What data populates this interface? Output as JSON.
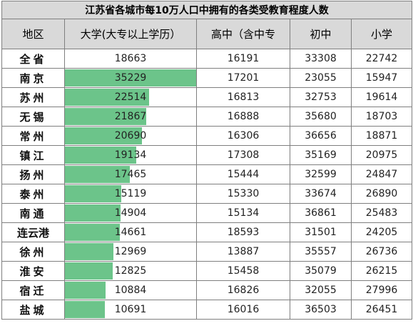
{
  "title": "江苏省各城市每10万人口中拥有的各类受教育程度人数",
  "columns": [
    "地区",
    "大学(大专以上学历）",
    "高中（含中专",
    "初中",
    "小学"
  ],
  "rows": [
    {
      "region": "全省",
      "university": 18663,
      "high_school": 16191,
      "middle_school": 33308,
      "primary_school": 22742
    },
    {
      "region": "南京",
      "university": 35229,
      "high_school": 17201,
      "middle_school": 23055,
      "primary_school": 15947
    },
    {
      "region": "苏州",
      "university": 22514,
      "high_school": 16813,
      "middle_school": 32753,
      "primary_school": 19614
    },
    {
      "region": "无锡",
      "university": 21867,
      "high_school": 16888,
      "middle_school": 35680,
      "primary_school": 18703
    },
    {
      "region": "常州",
      "university": 20690,
      "high_school": 16306,
      "middle_school": 36656,
      "primary_school": 18871
    },
    {
      "region": "镇江",
      "university": 19134,
      "high_school": 17308,
      "middle_school": 35169,
      "primary_school": 20975
    },
    {
      "region": "扬州",
      "university": 17465,
      "high_school": 15444,
      "middle_school": 32599,
      "primary_school": 24847
    },
    {
      "region": "泰州",
      "university": 15119,
      "high_school": 15330,
      "middle_school": 33674,
      "primary_school": 26890
    },
    {
      "region": "南通",
      "university": 14904,
      "high_school": 15134,
      "middle_school": 36861,
      "primary_school": 25483
    },
    {
      "region": "连云港",
      "university": 14661,
      "high_school": 18593,
      "middle_school": 31501,
      "primary_school": 24205
    },
    {
      "region": "徐州",
      "university": 12969,
      "high_school": 13887,
      "middle_school": 35557,
      "primary_school": 26736
    },
    {
      "region": "淮安",
      "university": 12825,
      "high_school": 15458,
      "middle_school": 35079,
      "primary_school": 26215
    },
    {
      "region": "宿迁",
      "university": 10884,
      "high_school": 16826,
      "middle_school": 32055,
      "primary_school": 27996
    },
    {
      "region": "盐城",
      "university": 10691,
      "high_school": 16016,
      "middle_school": 36503,
      "primary_school": 26451
    }
  ],
  "data_bar": {
    "color": "#6cc48a",
    "column": "university",
    "max_value": 35229
  }
}
